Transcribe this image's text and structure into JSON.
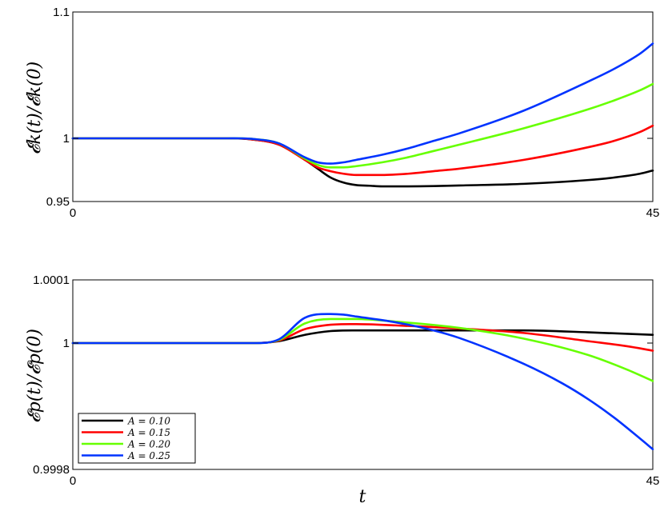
{
  "chart_data": [
    {
      "type": "line",
      "ylabel": "𝓔k(t)/𝓔k(0)",
      "xlim": [
        0,
        45
      ],
      "ylim": [
        0.95,
        1.1
      ],
      "xticks": [
        "0",
        "45"
      ],
      "yticks": [
        "0.95",
        "1",
        "1.1"
      ],
      "ytick_values": [
        0.95,
        1.0,
        1.1
      ],
      "grid": false,
      "series": [
        {
          "name": "A = 0.10",
          "color": "#000000",
          "x": [
            0,
            12,
            14,
            16,
            18,
            19,
            20,
            21,
            22,
            23,
            24,
            26,
            28,
            30,
            35,
            40,
            42,
            44,
            45
          ],
          "y": [
            1.0,
            1.0,
            0.999,
            0.995,
            0.983,
            0.976,
            0.969,
            0.965,
            0.963,
            0.9625,
            0.962,
            0.962,
            0.9622,
            0.9627,
            0.964,
            0.967,
            0.969,
            0.972,
            0.9745
          ]
        },
        {
          "name": "A = 0.15",
          "color": "#ff0000",
          "x": [
            0,
            12,
            14,
            16,
            18,
            19,
            20,
            21,
            22,
            24,
            26,
            28,
            30,
            35,
            40,
            42,
            44,
            45
          ],
          "y": [
            1.0,
            1.0,
            0.999,
            0.995,
            0.983,
            0.977,
            0.974,
            0.972,
            0.971,
            0.971,
            0.972,
            0.974,
            0.976,
            0.983,
            0.993,
            0.998,
            1.005,
            1.01
          ]
        },
        {
          "name": "A = 0.20",
          "color": "#66ff00",
          "x": [
            0,
            12,
            14,
            16,
            18,
            19,
            20,
            21,
            22,
            24,
            26,
            28,
            30,
            35,
            40,
            42,
            44,
            45
          ],
          "y": [
            1.0,
            1.0,
            0.9995,
            0.996,
            0.984,
            0.979,
            0.977,
            0.977,
            0.978,
            0.981,
            0.985,
            0.99,
            0.995,
            1.008,
            1.023,
            1.03,
            1.038,
            1.043
          ]
        },
        {
          "name": "A = 0.25",
          "color": "#0033ff",
          "x": [
            0,
            12,
            14,
            16,
            18,
            19,
            20,
            21,
            22,
            24,
            26,
            28,
            30,
            35,
            40,
            42,
            44,
            45
          ],
          "y": [
            1.0,
            1.0,
            0.9995,
            0.996,
            0.985,
            0.981,
            0.98,
            0.981,
            0.983,
            0.987,
            0.992,
            0.998,
            1.004,
            1.022,
            1.045,
            1.055,
            1.067,
            1.075
          ]
        }
      ]
    },
    {
      "type": "line",
      "ylabel": "𝓔p(t)/𝓔p(0)",
      "xlabel": "t",
      "xlim": [
        0,
        45
      ],
      "ylim": [
        0.9998,
        1.0001
      ],
      "xticks": [
        "0",
        "45"
      ],
      "yticks": [
        "0.9998",
        "1",
        "1.0001"
      ],
      "ytick_values": [
        0.9998,
        1.0,
        1.0001
      ],
      "grid": false,
      "legend": "bottom-left",
      "series": [
        {
          "name": "A = 0.10",
          "color": "#000000",
          "x": [
            0,
            14,
            16,
            18,
            20,
            22,
            25,
            30,
            35,
            40,
            45
          ],
          "y": [
            1.0,
            1.0,
            1.000003,
            1.000013,
            1.000019,
            1.00002,
            1.00002,
            1.00002,
            1.00002,
            1.000017,
            1.000013
          ]
        },
        {
          "name": "A = 0.15",
          "color": "#ff0000",
          "x": [
            0,
            14,
            16,
            18,
            20,
            22,
            25,
            30,
            35,
            40,
            43,
            45
          ],
          "y": [
            1.0,
            1.0,
            1.000004,
            1.000022,
            1.000029,
            1.00003,
            1.000028,
            1.000023,
            1.000016,
            1.000003,
            0.999995,
            0.999988
          ]
        },
        {
          "name": "A = 0.20",
          "color": "#66ff00",
          "x": [
            0,
            14,
            16,
            18,
            20,
            22,
            25,
            30,
            35,
            40,
            43,
            45
          ],
          "y": [
            1.0,
            1.0,
            1.000005,
            1.000031,
            1.000038,
            1.000038,
            1.000034,
            1.000024,
            1.000007,
            0.999981,
            0.999958,
            0.99994
          ]
        },
        {
          "name": "A = 0.25",
          "color": "#0033ff",
          "x": [
            0,
            14,
            16,
            18,
            20,
            21,
            22,
            25,
            28,
            30,
            35,
            38,
            40,
            42,
            44,
            45
          ],
          "y": [
            1.0,
            1.0,
            1.000006,
            1.00004,
            1.000046,
            1.000045,
            1.000042,
            1.000033,
            1.00002,
            1.000008,
            0.999967,
            0.999936,
            0.999911,
            0.999882,
            0.999849,
            0.999832
          ]
        }
      ]
    }
  ]
}
